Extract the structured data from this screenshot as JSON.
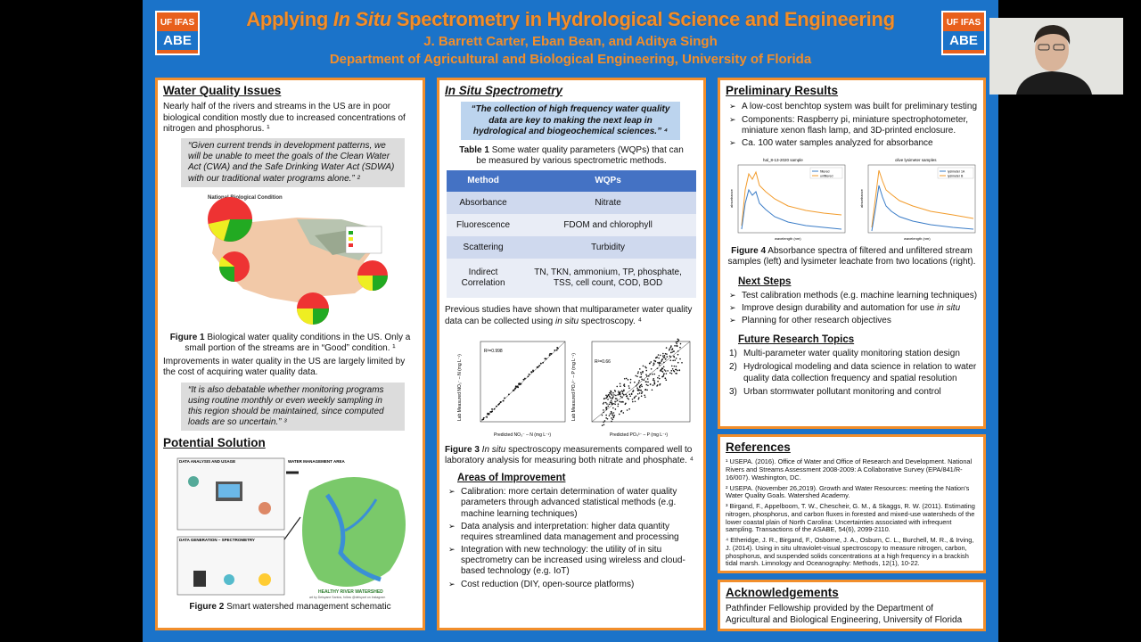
{
  "header": {
    "logo_top": "UF IFAS",
    "logo_bottom": "ABE",
    "title_pre": "Applying ",
    "title_italic": "In Situ",
    "title_post": " Spectrometry in Hydrological Science and Engineering",
    "authors": "J. Barrett Carter, Eban Bean, and Aditya Singh",
    "department": "Department of Agricultural and Biological Engineering, University of Florida"
  },
  "water_quality": {
    "heading": "Water Quality Issues",
    "intro": "Nearly half of the rivers and streams in the US are in poor biological condition mostly due to increased concentrations of nitrogen and phosphorus. ¹",
    "quote1": "“Given current trends in development patterns, we will be unable to meet the goals of the Clean Water Act (CWA) and the Safe Drinking Water Act (SDWA) with our traditional water programs alone.” ²",
    "map_title": "National Biological Condition",
    "fig1_label": "Figure 1",
    "fig1_text": " Biological water quality conditions in the US. Only a small portion of the streams are in “Good” condition. ¹",
    "improve": "Improvements in water quality in the US are largely limited by the cost of acquiring water quality data.",
    "quote2": "“It is also debatable whether monitoring programs using routine monthly or even weekly sampling in this region should be maintained, since computed loads are so uncertain.” ³",
    "solution_heading": "Potential Solution",
    "fig2_label": "Figure 2",
    "fig2_text": " Smart watershed management schematic",
    "schem_a": "DATA ANALYSIS AND USAGE",
    "schem_b": "WATER MANAGEMENT AREA",
    "schem_c": "DATA GENERATION – SPECTROMETRY",
    "schem_d": "HEALTHY RIVER WATERSHED",
    "schem_credit": "art by Deisyane Santos, follow @deisyart on Instagram"
  },
  "spectrometry": {
    "heading": "In Situ Spectrometry",
    "quote": "“The collection of high frequency water quality data are key to making the next leap in hydrological and biogeochemical sciences.” ⁴",
    "table_label": "Table 1",
    "table_caption": " Some water quality parameters (WQPs) that can be measured by various spectrometric methods.",
    "table_headers": [
      "Method",
      "WQPs"
    ],
    "table_rows": [
      [
        "Absorbance",
        "Nitrate"
      ],
      [
        "Fluorescence",
        "FDOM and chlorophyll"
      ],
      [
        "Scattering",
        "Turbidity"
      ],
      [
        "Indirect Correlation",
        "TN, TKN, ammonium, TP, phosphate, TSS, cell count, COD, BOD"
      ]
    ],
    "previous_pre": "Previous studies have shown that multiparameter water quality data can be collected using ",
    "previous_it": "in situ",
    "previous_post": " spectroscopy. ⁴",
    "fig3_label": "Figure 3",
    "fig3_it": " In situ",
    "fig3_text": " spectroscopy measurements compared well to laboratory analysis for measuring both nitrate and phosphate. ⁴",
    "areas_heading": "Areas of Improvement",
    "areas": [
      "Calibration: more certain determination of water quality parameters through advanced statistical methods (e.g. machine learning techniques)",
      "Data analysis and interpretation: higher data quantity requires streamlined data management and processing",
      "Integration with new technology: the utility of in situ spectrometry can be increased using wireless and cloud-based technology (e.g. IoT)",
      "Cost reduction (DIY, open-source platforms)"
    ]
  },
  "scatter": {
    "left_r2": "R²=0.998",
    "left_xlabel": "Predicted NO₃⁻ – N (mg L⁻¹)",
    "left_ylabel": "Lab Measured NO₃⁻ – N (mg L⁻¹)",
    "left_xticks": [
      "0",
      "1",
      "2",
      "3",
      "4",
      "5"
    ],
    "left_yticks": [
      "0",
      "1",
      "2",
      "3",
      "4",
      "5"
    ],
    "right_r2": "R²=0.66",
    "right_xlabel": "Predicted PO₄³⁻ – P (mg L⁻¹)",
    "right_ylabel": "Lab Measured PO₄³⁻ – P (mg L⁻¹)",
    "right_xticks": [
      "0",
      "0.02",
      "0.04",
      "0.06",
      "0.08"
    ],
    "right_yticks": [
      "0",
      "0.02",
      "0.04",
      "0.06",
      "0.08"
    ]
  },
  "results": {
    "heading": "Preliminary Results",
    "bullets": [
      "A low-cost benchtop system was built for preliminary testing",
      "Components: Raspberry pi, miniature spectrophotometer, miniature xenon flash lamp, and 3D-printed enclosure.",
      "Ca. 100 water samples analyzed for absorbance"
    ],
    "plot1_title": "hal_8-13-2020 sample",
    "plot2_title": "olive lysimeter samples",
    "plot1_legend": [
      "filtered",
      "unfiltered"
    ],
    "plot2_legend": [
      "lysimeter 1A",
      "lysimeter B"
    ],
    "wavelength_label": "wavelength (nm)",
    "absorbance_label": "absorbance",
    "fig4_label": "Figure 4",
    "fig4_text": " Absorbance spectra of filtered and unfiltered stream samples (left) and lysimeter leachate from two locations (right).",
    "next_heading": "Next Steps",
    "next": [
      "Test calibration methods (e.g. machine learning techniques)",
      "Improve design durability and automation for use ",
      "Planning for other research objectives"
    ],
    "next_it": "in situ",
    "future_heading": "Future Research Topics",
    "future": [
      "Multi-parameter water quality monitoring station design",
      "Hydrological modeling and data science in relation to water quality data collection frequency and spatial resolution",
      "Urban stormwater pollutant monitoring and control"
    ],
    "future_nums": [
      "1)",
      "2)",
      "3)"
    ]
  },
  "references": {
    "heading": "References",
    "items": [
      "¹ USEPA. (2016). Office of Water and Office of Research and Development. National Rivers and Streams Assessment 2008-2009: A Collaborative Survey (EPA/841/R-16/007). Washington, DC.",
      "² USEPA. (November 26,2019). Growth and Water Resources: meeting the Nation's Water Quality Goals. Watershed Academy.",
      "³ Birgand, F., Appelboom, T. W., Chescheir, G. M., & Skaggs, R. W. (2011). Estimating nitrogen, phosphorus, and carbon fluxes in forested and mixed-use watersheds of the lower coastal plain of North Carolina: Uncertainties associated with infrequent sampling. Transactions of the ASABE, 54(6), 2099-2110.",
      "⁴ Etheridge, J. R., Birgand, F., Osborne, J. A., Osburn, C. L., Burchell, M. R., & Irving, J. (2014). Using in situ ultraviolet-visual spectroscopy to measure nitrogen, carbon, phosphorus, and suspended solids concentrations at a high frequency in a brackish tidal marsh. Limnology and Oceanography: Methods, 12(1), 10-22."
    ]
  },
  "ack": {
    "heading": "Acknowledgements",
    "text": "Pathfinder Fellowship provided by the Department of Agricultural and Biological Engineering, University of Florida"
  },
  "colors": {
    "poster_bg": "#1b73c9",
    "accent": "#f28e2b",
    "table_header": "#4472c4"
  }
}
